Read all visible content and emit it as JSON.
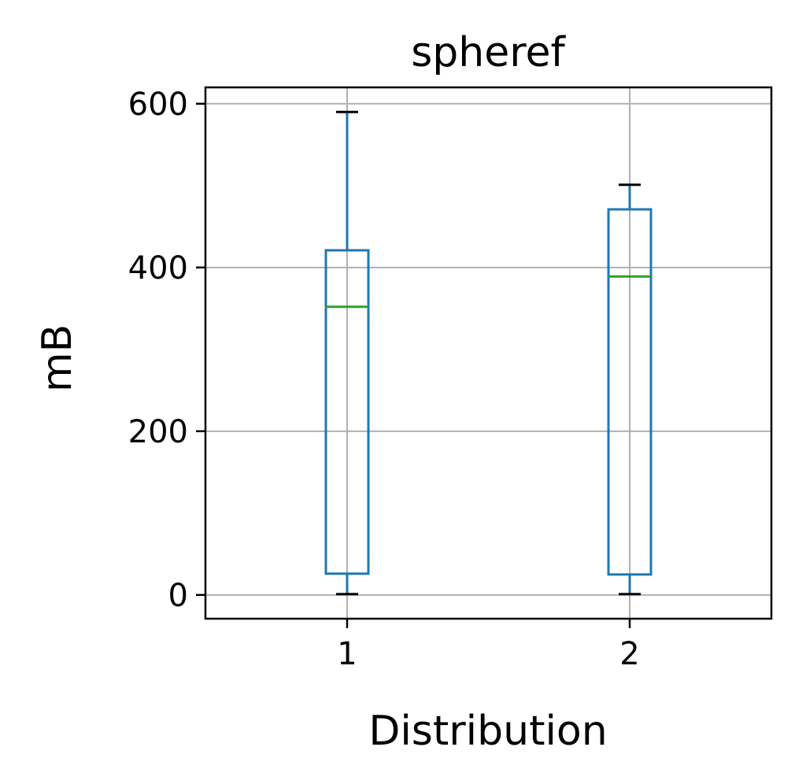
{
  "chart_data": {
    "type": "box",
    "title": "spheref",
    "xlabel": "Distribution",
    "ylabel": "mB",
    "categories": [
      "1",
      "2"
    ],
    "ylim": [
      -29,
      620
    ],
    "yticks": [
      0,
      200,
      400,
      600
    ],
    "grid": true,
    "boxes": [
      {
        "category": "1",
        "whisker_low": 1,
        "q1": 26,
        "median": 352,
        "q3": 421,
        "whisker_high": 590
      },
      {
        "category": "2",
        "whisker_low": 1,
        "q1": 25,
        "median": 389,
        "q3": 471,
        "whisker_high": 501
      }
    ],
    "colors": {
      "box": "#1f77b4",
      "median": "#2ca02c",
      "whisker_cap": "#000000",
      "grid": "#b0b0b0",
      "axes": "#000000"
    }
  }
}
